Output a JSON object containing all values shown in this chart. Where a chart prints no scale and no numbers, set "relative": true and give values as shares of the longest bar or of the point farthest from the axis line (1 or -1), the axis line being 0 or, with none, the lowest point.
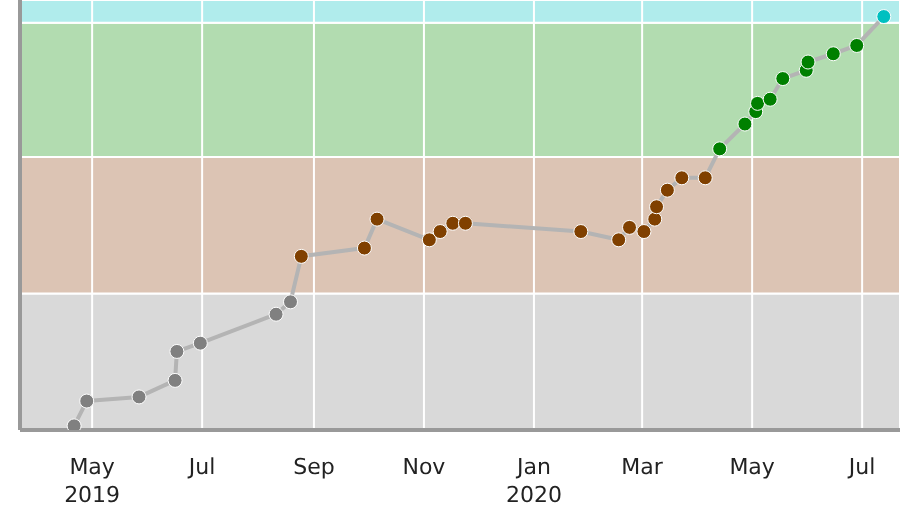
{
  "chart_data": {
    "type": "line",
    "relative": true,
    "marker": "circle",
    "grid": "x",
    "legend": false,
    "xlim": [
      "2019-03-22",
      "2020-07-22"
    ],
    "xticks": [
      {
        "value": "2019-05-01",
        "label": "May\n2019"
      },
      {
        "value": "2019-07-01",
        "label": "Jul"
      },
      {
        "value": "2019-09-01",
        "label": "Sep"
      },
      {
        "value": "2019-11-01",
        "label": "Nov"
      },
      {
        "value": "2020-01-01",
        "label": "Jan\n2020"
      },
      {
        "value": "2020-03-01",
        "label": "Mar"
      },
      {
        "value": "2020-05-01",
        "label": "May"
      },
      {
        "value": "2020-07-01",
        "label": "Jul"
      }
    ],
    "bands": [
      {
        "axis": "y",
        "from": 0,
        "to": 0.33,
        "color": "#d9d9d9"
      },
      {
        "axis": "y",
        "from": 0.33,
        "to": 0.66,
        "color": "#dcc4b4"
      },
      {
        "axis": "y",
        "from": 0.66,
        "to": 0.985,
        "color": "#b2dcb0"
      },
      {
        "axis": "y",
        "from": 0.985,
        "to": 1.04,
        "color": "#b0ecec"
      }
    ],
    "x": [
      "2019-04-21",
      "2019-04-28",
      "2019-05-27",
      "2019-06-16",
      "2019-06-17",
      "2019-06-30",
      "2019-08-11",
      "2019-08-19",
      "2019-08-25",
      "2019-09-29",
      "2019-10-06",
      "2019-11-04",
      "2019-11-10",
      "2019-11-17",
      "2019-11-24",
      "2020-01-27",
      "2020-02-17",
      "2020-02-23",
      "2020-03-02",
      "2020-03-08",
      "2020-03-09",
      "2020-03-15",
      "2020-03-23",
      "2020-04-05",
      "2020-04-13",
      "2020-04-27",
      "2020-05-03",
      "2020-05-04",
      "2020-05-11",
      "2020-05-18",
      "2020-05-31",
      "2020-06-01",
      "2020-06-15",
      "2020-06-28",
      "2020-07-13"
    ],
    "series": [
      {
        "color": "#b4b4b4",
        "values": [
          0.01,
          0.07,
          0.08,
          0.12,
          0.19,
          0.21,
          0.28,
          0.31,
          0.42,
          0.44,
          0.51,
          0.46,
          0.48,
          0.5,
          0.5,
          0.48,
          0.46,
          0.49,
          0.48,
          0.51,
          0.54,
          0.58,
          0.61,
          0.61,
          0.68,
          0.74,
          0.77,
          0.79,
          0.8,
          0.85,
          0.87,
          0.89,
          0.91,
          0.93,
          1
        ],
        "colors": [
          "#808080",
          "#808080",
          "#808080",
          "#808080",
          "#808080",
          "#808080",
          "#808080",
          "#808080",
          "#804000",
          "#804000",
          "#804000",
          "#804000",
          "#804000",
          "#804000",
          "#804000",
          "#804000",
          "#804000",
          "#804000",
          "#804000",
          "#804000",
          "#804000",
          "#804000",
          "#804000",
          "#804000",
          "#008000",
          "#008000",
          "#008000",
          "#008000",
          "#008000",
          "#008000",
          "#008000",
          "#008000",
          "#008000",
          "#008000",
          "#00c0c0"
        ]
      }
    ]
  }
}
